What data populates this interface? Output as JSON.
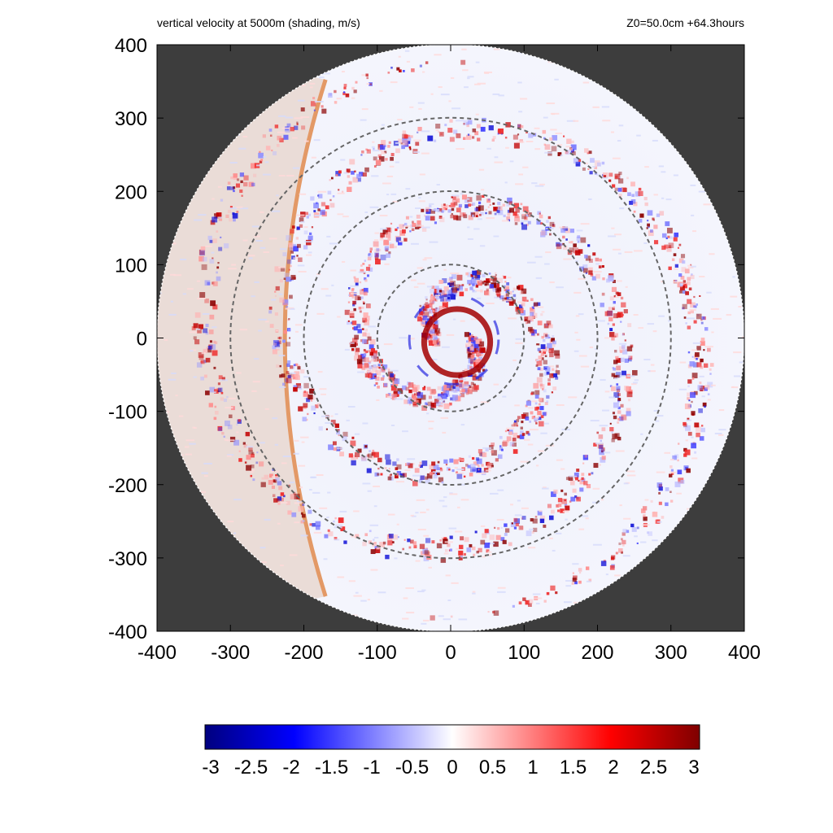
{
  "chart_data": {
    "type": "heatmap",
    "title": "vertical velocity at 5000m (shading, m/s)",
    "subtitle": "Z0=50.0cm  +64.3hours",
    "xlim": [
      -400,
      400
    ],
    "ylim": [
      -400,
      400
    ],
    "xticks": [
      "-400",
      "-300",
      "-200",
      "-100",
      "0",
      "100",
      "200",
      "300",
      "400"
    ],
    "yticks": [
      "-400",
      "-300",
      "-200",
      "-100",
      "0",
      "100",
      "200",
      "300",
      "400"
    ],
    "domain_radius": 400,
    "reference_circle_radii": [
      100,
      200,
      300
    ],
    "colorbar": {
      "range": [
        -3,
        3
      ],
      "ticks": [
        "-3",
        "-2.5",
        "-2",
        "-1.5",
        "-1",
        "-0.5",
        "0",
        "0.5",
        "1",
        "1.5",
        "2",
        "2.5",
        "3"
      ],
      "colors": [
        "#00007f",
        "#0000ff",
        "#ffffff",
        "#ff0000",
        "#7f0000"
      ]
    },
    "colors": {
      "outside_domain": "#3d3d3d",
      "boundary_band": "#e39966",
      "boundary_region": "#e9d9d3"
    },
    "center_ring_radius": 45
  }
}
